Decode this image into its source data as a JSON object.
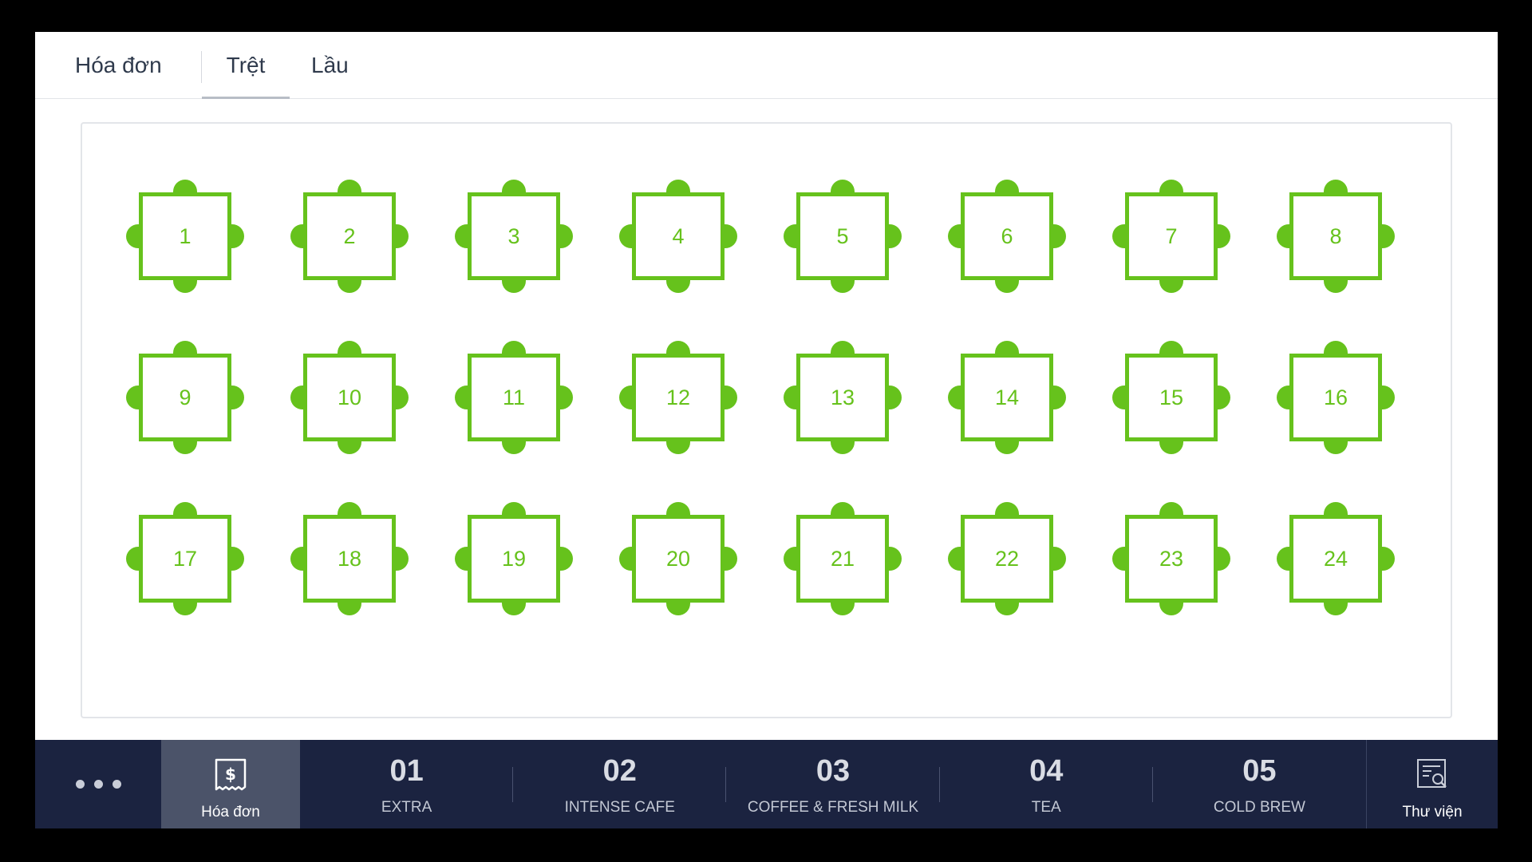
{
  "tabs": {
    "invoice": "Hóa đơn",
    "ground_floor": "Trệt",
    "upstairs": "Lầu",
    "active": "ground_floor"
  },
  "tables": [
    "1",
    "2",
    "3",
    "4",
    "5",
    "6",
    "7",
    "8",
    "9",
    "10",
    "11",
    "12",
    "13",
    "14",
    "15",
    "16",
    "17",
    "18",
    "19",
    "20",
    "21",
    "22",
    "23",
    "24"
  ],
  "colors": {
    "table_green": "#66c21c",
    "nav_background": "#1b2340",
    "nav_active": "#4b5369"
  },
  "bottom_nav": {
    "more_icon": "ellipsis-icon",
    "invoice": {
      "label": "Hóa đơn",
      "icon": "receipt-dollar-icon"
    },
    "categories": [
      {
        "number": "01",
        "name": "EXTRA"
      },
      {
        "number": "02",
        "name": "INTENSE CAFE"
      },
      {
        "number": "03",
        "name": "COFFEE & FRESH MILK"
      },
      {
        "number": "04",
        "name": "TEA"
      },
      {
        "number": "05",
        "name": "COLD BREW"
      }
    ],
    "library": {
      "label": "Thư viện",
      "icon": "library-search-icon"
    }
  }
}
